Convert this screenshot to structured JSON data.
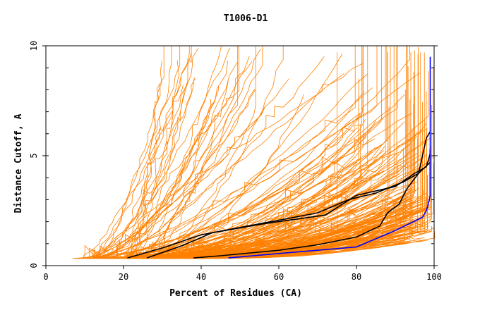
{
  "chart_data": {
    "type": "line",
    "title": "T1006-D1",
    "xlabel": "Percent of Residues (CA)",
    "ylabel": "Distance Cutoff, A",
    "xlim": [
      0,
      100
    ],
    "ylim": [
      0,
      10
    ],
    "x_ticks": [
      "0",
      "20",
      "40",
      "60",
      "80",
      "100"
    ],
    "y_ticks": [
      "0",
      "5",
      "10"
    ],
    "grid": false,
    "colors": {
      "models": "#ff8000",
      "highlight": "#000000",
      "best": "#0000ff"
    },
    "highlight_series": [
      {
        "color": "#000000",
        "points": [
          [
            21,
            0.35
          ],
          [
            30,
            0.8
          ],
          [
            40,
            1.4
          ],
          [
            55,
            1.9
          ],
          [
            70,
            2.4
          ],
          [
            78,
            3.0
          ],
          [
            85,
            3.3
          ],
          [
            92,
            3.8
          ],
          [
            96,
            4.2
          ],
          [
            99,
            4.7
          ]
        ]
      },
      {
        "color": "#000000",
        "points": [
          [
            26,
            0.35
          ],
          [
            35,
            0.9
          ],
          [
            43,
            1.5
          ],
          [
            56,
            1.9
          ],
          [
            72,
            2.3
          ],
          [
            80,
            3.2
          ],
          [
            90,
            3.6
          ],
          [
            95,
            4.2
          ],
          [
            98,
            4.5
          ],
          [
            99,
            5.1
          ]
        ]
      },
      {
        "color": "#000000",
        "points": [
          [
            38,
            0.35
          ],
          [
            45,
            0.45
          ],
          [
            60,
            0.7
          ],
          [
            70,
            0.95
          ],
          [
            80,
            1.3
          ],
          [
            86,
            1.8
          ],
          [
            88,
            2.4
          ],
          [
            91,
            2.8
          ],
          [
            93,
            3.5
          ],
          [
            96,
            4.2
          ],
          [
            97,
            5.0
          ],
          [
            98,
            5.8
          ],
          [
            99,
            6.1
          ]
        ]
      },
      {
        "color": "#0000ff",
        "points": [
          [
            47,
            0.35
          ],
          [
            60,
            0.55
          ],
          [
            80,
            0.85
          ],
          [
            90,
            1.6
          ],
          [
            97,
            2.2
          ],
          [
            98,
            2.5
          ],
          [
            98.5,
            2.8
          ],
          [
            99,
            3.2
          ],
          [
            99,
            5
          ],
          [
            99,
            9.5
          ]
        ]
      }
    ]
  }
}
